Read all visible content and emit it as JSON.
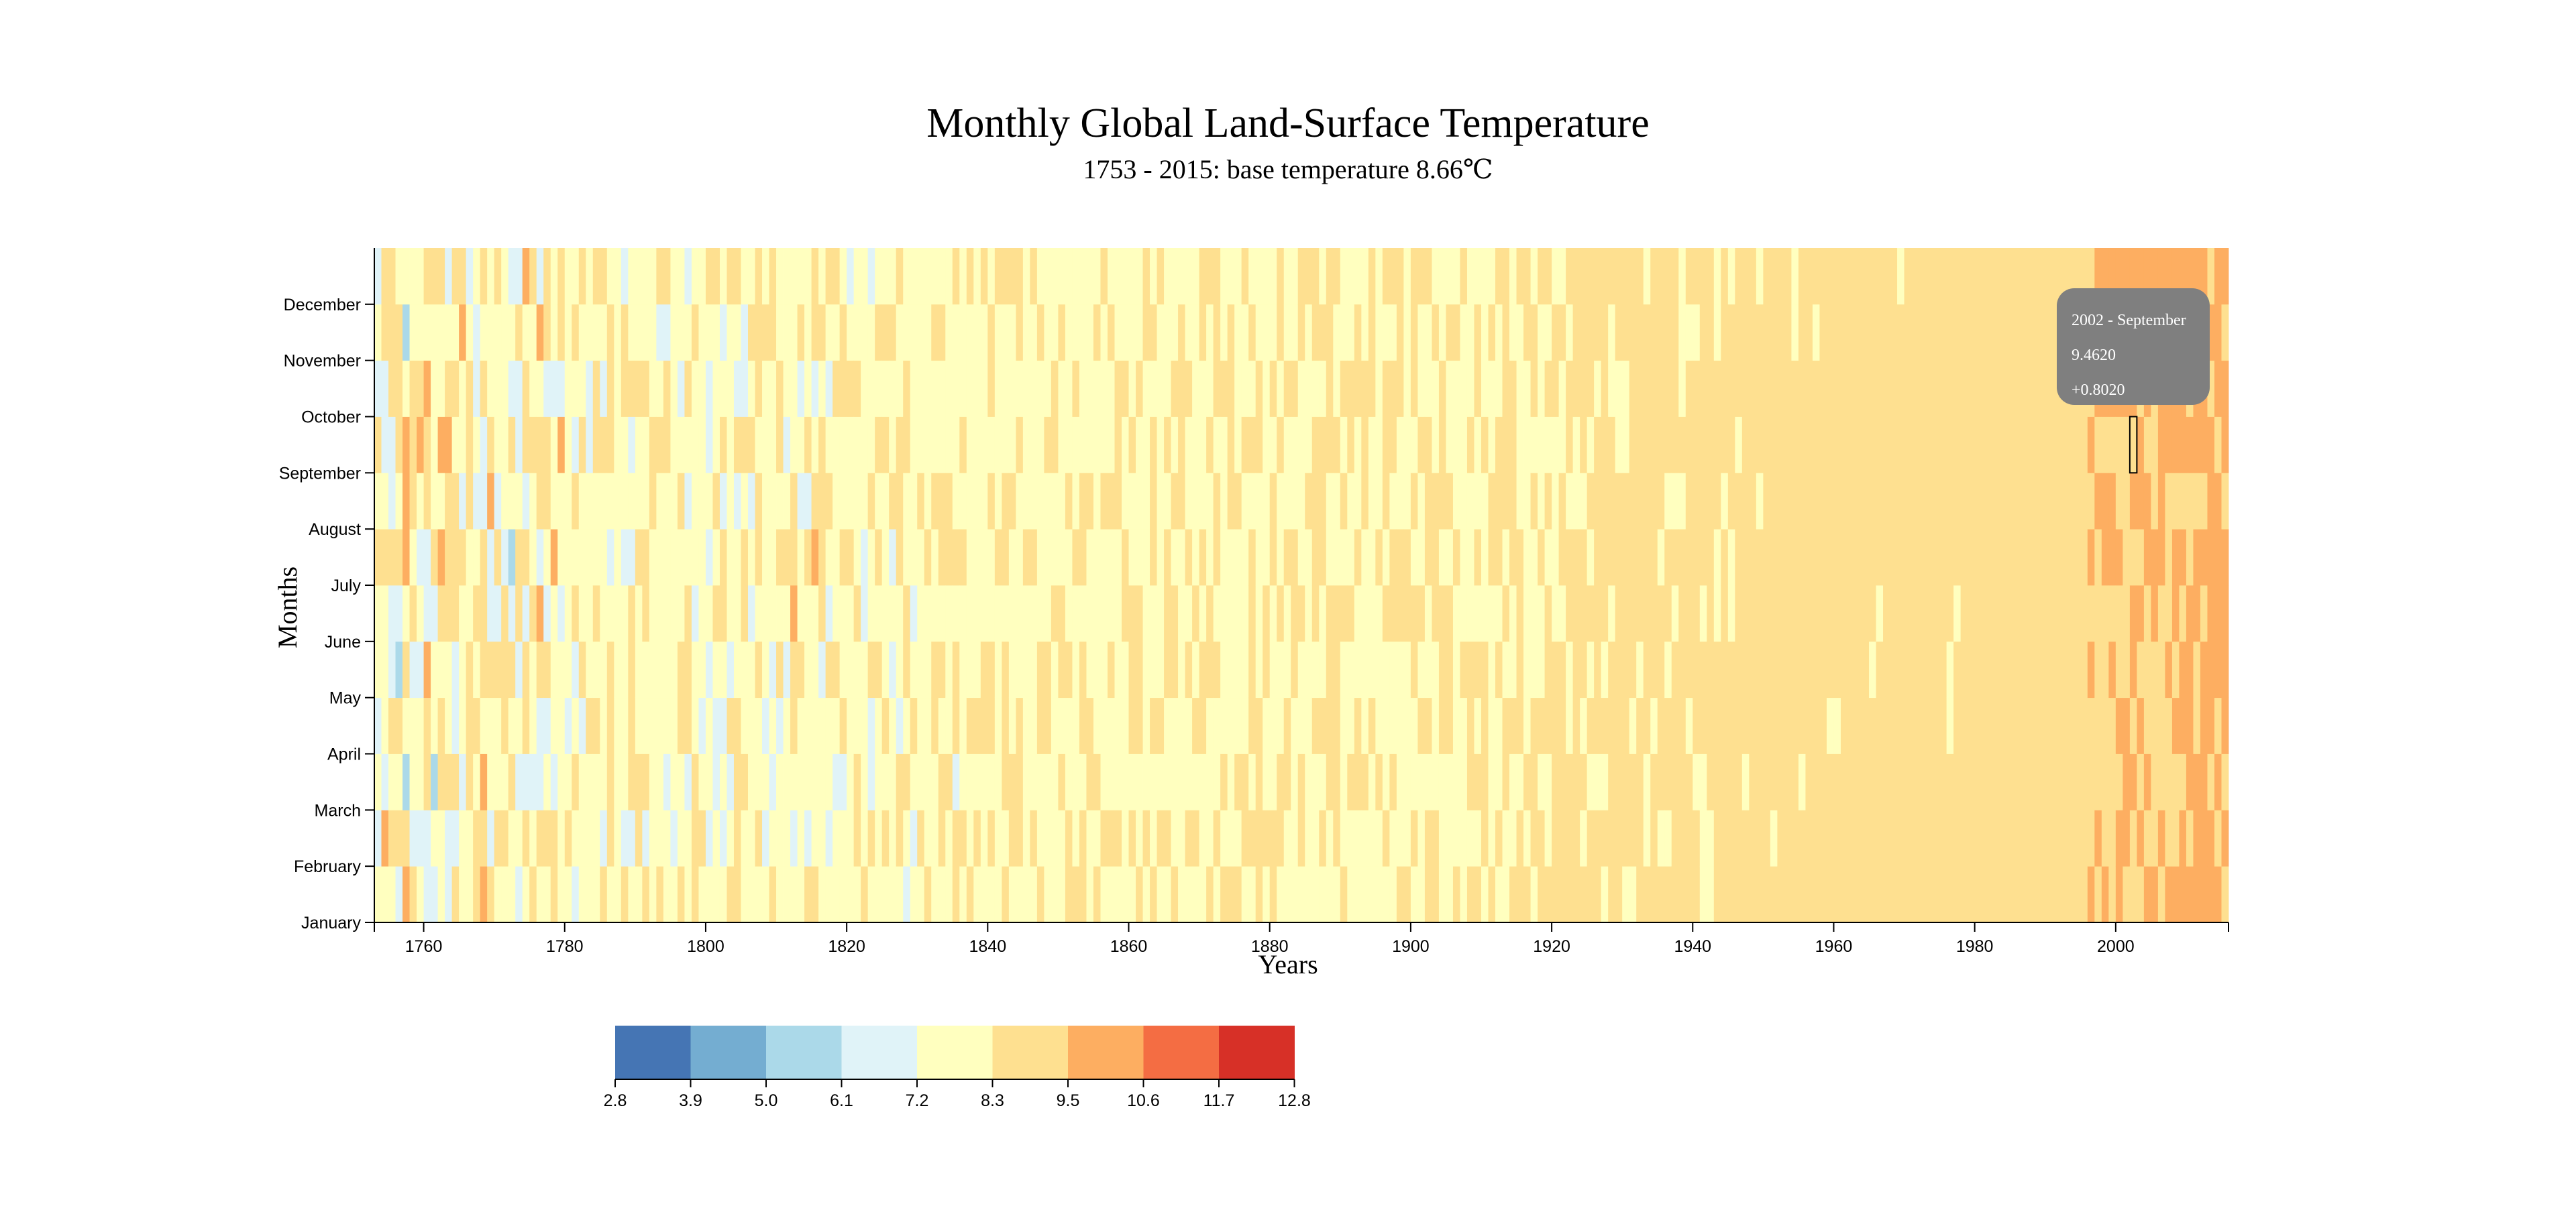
{
  "chart_data": {
    "type": "heatmap",
    "title": "Monthly Global Land-Surface Temperature",
    "subtitle": "1753 - 2015: base temperature 8.66℃",
    "xlabel": "Years",
    "ylabel": "Months",
    "base_temperature": 8.66,
    "x_range": [
      1753,
      2015
    ],
    "months": [
      "January",
      "February",
      "March",
      "April",
      "May",
      "June",
      "July",
      "August",
      "September",
      "October",
      "November",
      "December"
    ],
    "x_ticks": [
      1760,
      1780,
      1800,
      1820,
      1840,
      1860,
      1880,
      1900,
      1920,
      1940,
      1960,
      1980,
      2000
    ],
    "legend": {
      "thresholds": [
        2.8,
        3.9,
        5.0,
        6.1,
        7.2,
        8.3,
        9.5,
        10.6,
        11.7,
        12.8
      ],
      "colors": [
        "#4575b4",
        "#74add1",
        "#abd9e9",
        "#e0f3f8",
        "#ffffbf",
        "#fee090",
        "#fdae61",
        "#f46d43",
        "#d73027"
      ]
    },
    "highlight": {
      "year": 2002,
      "month": "September",
      "label": "2002 - September",
      "temperature": "9.4620",
      "variance": "+0.8020"
    }
  },
  "tooltip": {
    "line1": "2002 - September",
    "line2": "9.4620",
    "line3": "+0.8020"
  }
}
